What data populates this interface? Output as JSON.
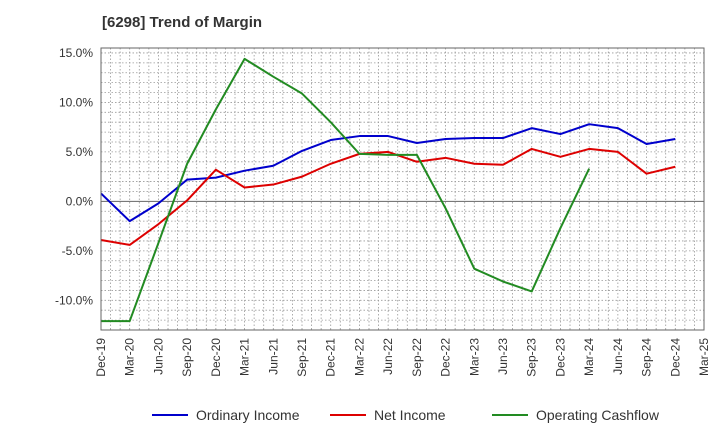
{
  "chart_data": {
    "type": "line",
    "title": "[6298]  Trend of Margin",
    "xlabel": "",
    "ylabel": "",
    "categories": [
      "Dec-19",
      "Mar-20",
      "Jun-20",
      "Sep-20",
      "Dec-20",
      "Mar-21",
      "Jun-21",
      "Sep-21",
      "Dec-21",
      "Mar-22",
      "Jun-22",
      "Sep-22",
      "Dec-22",
      "Mar-23",
      "Jun-23",
      "Sep-23",
      "Dec-23",
      "Mar-24",
      "Jun-24",
      "Sep-24",
      "Dec-24",
      "Mar-25"
    ],
    "y_ticks": [
      "15.0%",
      "10.0%",
      "5.0%",
      "0.0%",
      "-5.0%",
      "-10.0%"
    ],
    "ylim": [
      -13,
      15.5
    ],
    "grid": true,
    "legend_position": "bottom",
    "series": [
      {
        "name": "Ordinary Income",
        "color": "#0000cc",
        "values": [
          0.8,
          -2.0,
          -0.2,
          2.2,
          2.4,
          3.1,
          3.6,
          5.1,
          6.2,
          6.6,
          6.6,
          5.9,
          6.3,
          6.4,
          6.4,
          7.4,
          6.8,
          7.8,
          7.4,
          5.8,
          6.3,
          null
        ]
      },
      {
        "name": "Net Income",
        "color": "#dd0000",
        "values": [
          -3.9,
          -4.4,
          -2.3,
          0.1,
          3.2,
          1.4,
          1.7,
          2.5,
          3.8,
          4.8,
          5.0,
          4.0,
          4.4,
          3.8,
          3.7,
          5.3,
          4.5,
          5.3,
          5.0,
          2.8,
          3.5,
          null
        ]
      },
      {
        "name": "Operating Cashflow",
        "color": "#228b22",
        "values": [
          -12.1,
          -12.1,
          -4.2,
          3.8,
          9.3,
          14.4,
          12.6,
          10.9,
          8.0,
          4.8,
          4.7,
          4.7,
          -0.7,
          -6.8,
          -8.1,
          -9.1,
          -2.7,
          3.3,
          null,
          null,
          null,
          null
        ]
      }
    ]
  }
}
